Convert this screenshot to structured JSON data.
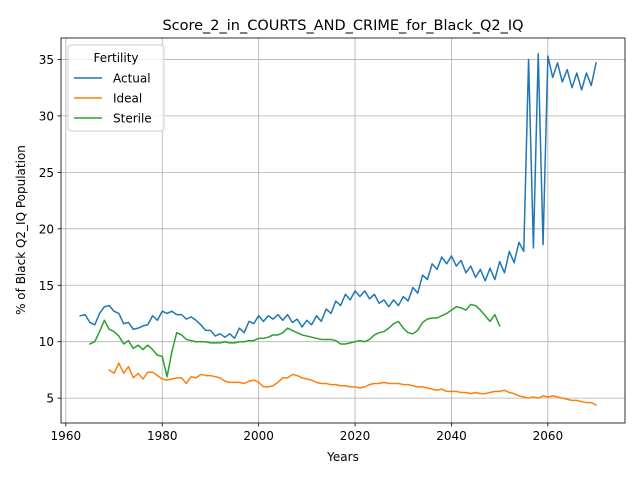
{
  "chart_data": {
    "type": "line",
    "title": "Score_2_in_COURTS_AND_CRIME_for_Black_Q2_IQ",
    "xlabel": "Years",
    "ylabel": "% of Black Q2_IQ Population",
    "xlim": [
      1959,
      2076
    ],
    "ylim": [
      2.8,
      36.9
    ],
    "xticks": [
      1960,
      1980,
      2000,
      2020,
      2040,
      2060
    ],
    "yticks": [
      5,
      10,
      15,
      20,
      25,
      30,
      35
    ],
    "grid": true,
    "legend": {
      "title": "Fertility",
      "placement": "top-left"
    },
    "series": [
      {
        "name": "Actual",
        "color": "#1f77b4",
        "x": [
          1963,
          1964,
          1965,
          1966,
          1967,
          1968,
          1969,
          1970,
          1971,
          1972,
          1973,
          1974,
          1975,
          1976,
          1977,
          1978,
          1979,
          1980,
          1981,
          1982,
          1983,
          1984,
          1985,
          1986,
          1987,
          1988,
          1989,
          1990,
          1991,
          1992,
          1993,
          1994,
          1995,
          1996,
          1997,
          1998,
          1999,
          2000,
          2001,
          2002,
          2003,
          2004,
          2005,
          2006,
          2007,
          2008,
          2009,
          2010,
          2011,
          2012,
          2013,
          2014,
          2015,
          2016,
          2017,
          2018,
          2019,
          2020,
          2021,
          2022,
          2023,
          2024,
          2025,
          2026,
          2027,
          2028,
          2029,
          2030,
          2031,
          2032,
          2033,
          2034,
          2035,
          2036,
          2037,
          2038,
          2039,
          2040,
          2041,
          2042,
          2043,
          2044,
          2045,
          2046,
          2047,
          2048,
          2049,
          2050,
          2051,
          2052,
          2053,
          2054,
          2055,
          2056,
          2057,
          2058,
          2059,
          2060,
          2061,
          2062,
          2063,
          2064,
          2065,
          2066,
          2067,
          2068,
          2069,
          2070
        ],
        "values": [
          12.3,
          12.4,
          11.7,
          11.5,
          12.5,
          13.1,
          13.2,
          12.7,
          12.5,
          11.6,
          11.7,
          11.1,
          11.2,
          11.4,
          11.5,
          12.3,
          11.9,
          12.7,
          12.5,
          12.7,
          12.4,
          12.4,
          12.0,
          12.2,
          11.9,
          11.5,
          11.0,
          11.0,
          10.5,
          10.7,
          10.4,
          10.7,
          10.3,
          11.2,
          10.8,
          11.8,
          11.6,
          12.3,
          11.8,
          12.3,
          12.0,
          12.4,
          11.9,
          12.4,
          11.7,
          12.0,
          11.3,
          11.9,
          11.5,
          12.3,
          11.8,
          12.9,
          12.5,
          13.6,
          13.2,
          14.2,
          13.7,
          14.5,
          14.0,
          14.5,
          13.8,
          14.2,
          13.4,
          13.7,
          13.1,
          13.7,
          13.2,
          14.0,
          13.6,
          14.8,
          14.3,
          15.9,
          15.5,
          16.9,
          16.4,
          17.5,
          16.9,
          17.6,
          16.7,
          17.2,
          16.1,
          16.7,
          15.7,
          16.4,
          15.4,
          16.5,
          15.5,
          17.1,
          16.1,
          18.0,
          17.0,
          18.8,
          18.0,
          35.0,
          18.3,
          35.5,
          18.6,
          35.3,
          33.4,
          34.7,
          33.0,
          34.1,
          32.5,
          33.8,
          32.3,
          33.8,
          32.7,
          34.7
        ]
      },
      {
        "name": "Ideal",
        "color": "#ff7f0e",
        "x": [
          1969,
          1970,
          1971,
          1972,
          1973,
          1974,
          1975,
          1976,
          1977,
          1978,
          1979,
          1980,
          1981,
          1982,
          1983,
          1984,
          1985,
          1986,
          1987,
          1988,
          1989,
          1990,
          1991,
          1992,
          1993,
          1994,
          1995,
          1996,
          1997,
          1998,
          1999,
          2000,
          2001,
          2002,
          2003,
          2004,
          2005,
          2006,
          2007,
          2008,
          2009,
          2010,
          2011,
          2012,
          2013,
          2014,
          2015,
          2016,
          2017,
          2018,
          2019,
          2020,
          2021,
          2022,
          2023,
          2024,
          2025,
          2026,
          2027,
          2028,
          2029,
          2030,
          2031,
          2032,
          2033,
          2034,
          2035,
          2036,
          2037,
          2038,
          2039,
          2040,
          2041,
          2042,
          2043,
          2044,
          2045,
          2046,
          2047,
          2048,
          2049,
          2050,
          2051,
          2052,
          2053,
          2054,
          2055,
          2056,
          2057,
          2058,
          2059,
          2060,
          2061,
          2062,
          2063,
          2064,
          2065,
          2066,
          2067,
          2068,
          2069,
          2070
        ],
        "values": [
          7.5,
          7.2,
          8.1,
          7.2,
          7.8,
          6.8,
          7.2,
          6.7,
          7.3,
          7.3,
          7.0,
          6.7,
          6.6,
          6.7,
          6.8,
          6.8,
          6.3,
          6.9,
          6.8,
          7.1,
          7.0,
          7.0,
          6.9,
          6.8,
          6.5,
          6.4,
          6.4,
          6.4,
          6.3,
          6.5,
          6.6,
          6.4,
          6.0,
          6.0,
          6.1,
          6.4,
          6.8,
          6.8,
          7.1,
          7.0,
          6.8,
          6.7,
          6.6,
          6.4,
          6.3,
          6.3,
          6.2,
          6.2,
          6.1,
          6.1,
          6.0,
          6.0,
          5.9,
          6.0,
          6.2,
          6.3,
          6.3,
          6.4,
          6.3,
          6.3,
          6.3,
          6.2,
          6.2,
          6.1,
          6.0,
          6.0,
          5.9,
          5.8,
          5.7,
          5.8,
          5.6,
          5.6,
          5.6,
          5.5,
          5.5,
          5.4,
          5.5,
          5.4,
          5.4,
          5.5,
          5.6,
          5.6,
          5.7,
          5.5,
          5.4,
          5.2,
          5.1,
          5.0,
          5.1,
          5.0,
          5.2,
          5.1,
          5.2,
          5.1,
          5.0,
          4.9,
          4.8,
          4.8,
          4.7,
          4.6,
          4.6,
          4.4
        ]
      },
      {
        "name": "Sterile",
        "color": "#2ca02c",
        "x": [
          1965,
          1966,
          1967,
          1968,
          1969,
          1970,
          1971,
          1972,
          1973,
          1974,
          1975,
          1976,
          1977,
          1978,
          1979,
          1980,
          1981,
          1982,
          1983,
          1984,
          1985,
          1986,
          1987,
          1988,
          1989,
          1990,
          1991,
          1992,
          1993,
          1994,
          1995,
          1996,
          1997,
          1998,
          1999,
          2000,
          2001,
          2002,
          2003,
          2004,
          2005,
          2006,
          2007,
          2008,
          2009,
          2010,
          2011,
          2012,
          2013,
          2014,
          2015,
          2016,
          2017,
          2018,
          2019,
          2020,
          2021,
          2022,
          2023,
          2024,
          2025,
          2026,
          2027,
          2028,
          2029,
          2030,
          2031,
          2032,
          2033,
          2034,
          2035,
          2036,
          2037,
          2038,
          2039,
          2040,
          2041,
          2042,
          2043,
          2044,
          2045,
          2046,
          2047,
          2048,
          2049,
          2050
        ],
        "values": [
          9.8,
          10.0,
          10.9,
          11.9,
          11.1,
          10.9,
          10.5,
          9.8,
          10.1,
          9.4,
          9.7,
          9.3,
          9.7,
          9.3,
          8.8,
          8.7,
          6.9,
          9.1,
          10.8,
          10.6,
          10.2,
          10.1,
          10.0,
          10.0,
          10.0,
          9.9,
          9.9,
          9.9,
          10.0,
          9.9,
          9.9,
          10.0,
          10.0,
          10.1,
          10.1,
          10.3,
          10.3,
          10.4,
          10.6,
          10.6,
          10.8,
          11.2,
          11.0,
          10.8,
          10.6,
          10.5,
          10.4,
          10.3,
          10.2,
          10.2,
          10.2,
          10.1,
          9.8,
          9.8,
          9.9,
          10.0,
          10.1,
          10.0,
          10.2,
          10.6,
          10.8,
          10.9,
          11.2,
          11.6,
          11.8,
          11.2,
          10.8,
          10.7,
          11.0,
          11.7,
          12.0,
          12.1,
          12.1,
          12.3,
          12.5,
          12.8,
          13.1,
          13.0,
          12.8,
          13.3,
          13.2,
          12.8,
          12.3,
          11.8,
          12.4,
          11.4
        ]
      }
    ]
  }
}
